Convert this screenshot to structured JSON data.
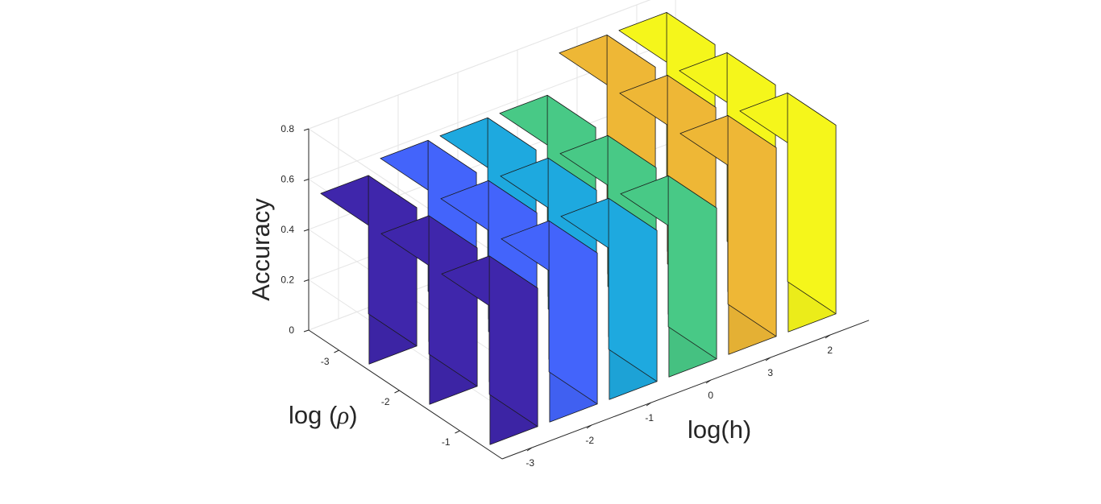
{
  "chart_data": {
    "type": "bar3d",
    "zlabel": "Accuracy",
    "xlabel": "log(h)",
    "ylabel_prefix": "log (",
    "ylabel_symbol": "ρ",
    "ylabel_suffix": ")",
    "x_ticks": [
      "-3",
      "-2",
      "-1",
      "0",
      "3",
      "2"
    ],
    "y_ticks": [
      "-3",
      "-2",
      "-1"
    ],
    "z_ticks": [
      "0",
      "0.2",
      "0.4",
      "0.6",
      "0.8"
    ],
    "zlim": [
      0,
      0.8
    ],
    "grid": true,
    "colors": [
      "#3f26ab",
      "#4364fb",
      "#1ea9df",
      "#48c986",
      "#eeb736",
      "#f5f61b"
    ],
    "values": [
      [
        0.55,
        0.55,
        0.55
      ],
      [
        0.6,
        0.6,
        0.6
      ],
      [
        0.6,
        0.6,
        0.6
      ],
      [
        0.6,
        0.6,
        0.6
      ],
      [
        0.75,
        0.75,
        0.75
      ],
      [
        0.75,
        0.75,
        0.75
      ]
    ]
  }
}
